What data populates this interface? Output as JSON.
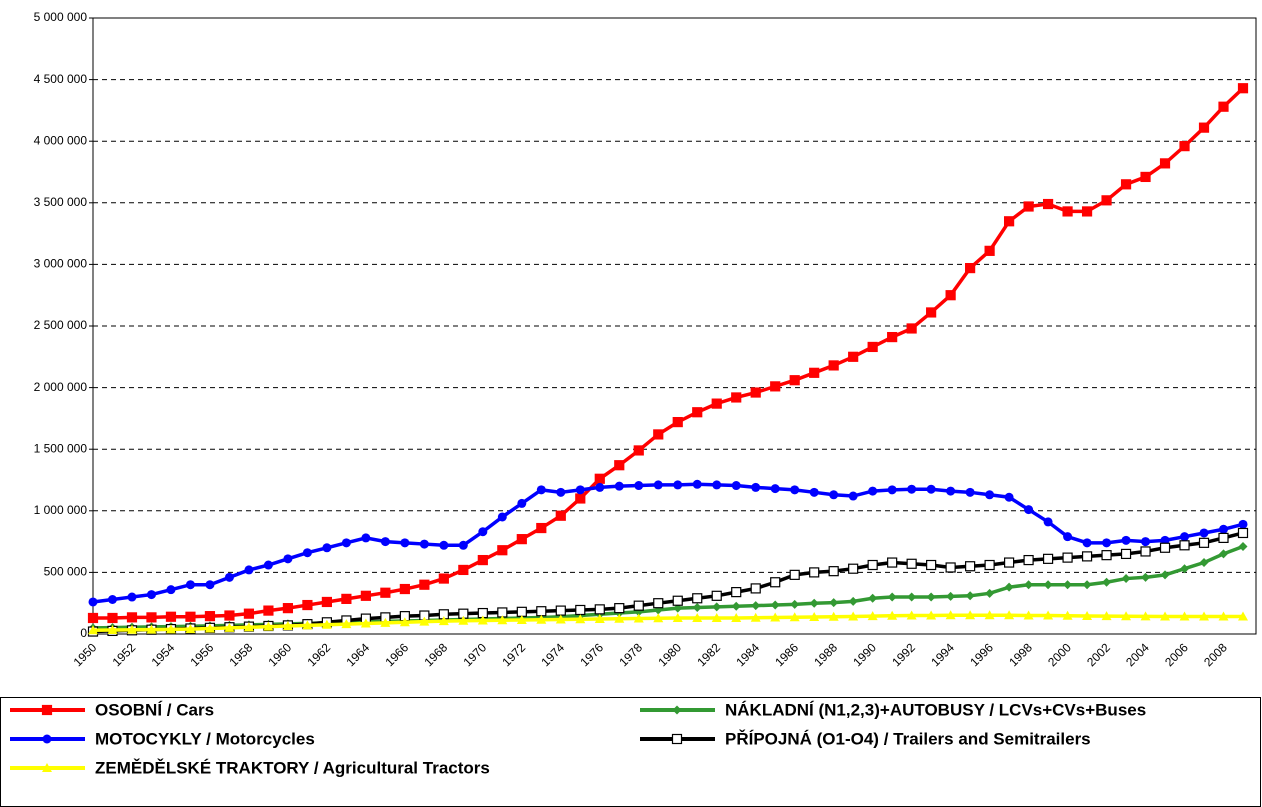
{
  "chart_data": {
    "type": "line",
    "categories": [
      "1950",
      null,
      "1952",
      null,
      "1954",
      null,
      "1956",
      null,
      "1958",
      null,
      "1960",
      null,
      "1962",
      null,
      "1964",
      null,
      "1966",
      null,
      "1968",
      null,
      "1970",
      null,
      "1972",
      null,
      "1974",
      null,
      "1976",
      null,
      "1978",
      null,
      "1980",
      null,
      "1982",
      null,
      "1984",
      null,
      "1986",
      null,
      "1988",
      null,
      "1990",
      null,
      "1992",
      null,
      "1994",
      null,
      "1996",
      null,
      "1998",
      null,
      "2000",
      null,
      "2002",
      null,
      "2004",
      null,
      "2006",
      null,
      "2008",
      null
    ],
    "series": [
      {
        "name": "OSOBNÍ / Cars",
        "color": "#ff0000",
        "marker": "square",
        "values": [
          130000,
          130000,
          135000,
          135000,
          140000,
          140000,
          145000,
          150000,
          165000,
          190000,
          210000,
          235000,
          260000,
          285000,
          310000,
          335000,
          365000,
          400000,
          450000,
          520000,
          600000,
          680000,
          770000,
          860000,
          960000,
          1100000,
          1260000,
          1370000,
          1490000,
          1620000,
          1720000,
          1800000,
          1870000,
          1920000,
          1960000,
          2010000,
          2060000,
          2120000,
          2180000,
          2250000,
          2330000,
          2410000,
          2480000,
          2610000,
          2750000,
          2970000,
          3110000,
          3350000,
          3470000,
          3490000,
          3430000,
          3430000,
          3520000,
          3650000,
          3710000,
          3820000,
          3960000,
          4110000,
          4280000,
          4430000
        ]
      },
      {
        "name": "MOTOCYKLY / Motorcycles",
        "color": "#0000ff",
        "marker": "circle",
        "values": [
          260000,
          280000,
          300000,
          320000,
          360000,
          400000,
          400000,
          460000,
          520000,
          560000,
          610000,
          660000,
          700000,
          740000,
          780000,
          750000,
          740000,
          730000,
          720000,
          720000,
          830000,
          950000,
          1060000,
          1170000,
          1150000,
          1170000,
          1190000,
          1200000,
          1205000,
          1210000,
          1210000,
          1215000,
          1210000,
          1205000,
          1190000,
          1180000,
          1170000,
          1150000,
          1130000,
          1120000,
          1160000,
          1170000,
          1175000,
          1175000,
          1160000,
          1150000,
          1130000,
          1110000,
          1010000,
          910000,
          790000,
          740000,
          740000,
          760000,
          750000,
          760000,
          790000,
          820000,
          850000,
          890000
        ]
      },
      {
        "name": "NÁKLADNÍ (N1,2,3)+AUTOBUSY / LCVs+CVs+Buses",
        "color": "#339933",
        "marker": "diamond",
        "values": [
          50000,
          52000,
          55000,
          58000,
          60000,
          63000,
          66000,
          70000,
          74000,
          78000,
          82000,
          86000,
          90000,
          94000,
          98000,
          102000,
          106000,
          110000,
          114000,
          118000,
          122000,
          126000,
          130000,
          134000,
          140000,
          150000,
          160000,
          170000,
          180000,
          195000,
          210000,
          215000,
          220000,
          225000,
          230000,
          235000,
          240000,
          250000,
          255000,
          265000,
          290000,
          300000,
          300000,
          300000,
          305000,
          310000,
          330000,
          380000,
          400000,
          400000,
          400000,
          400000,
          420000,
          450000,
          460000,
          480000,
          530000,
          580000,
          650000,
          710000
        ]
      },
      {
        "name": "PŘÍPOJNÁ (O1-O4) / Trailers and Semitrailers",
        "color": "#000000",
        "marker": "open-square",
        "values": [
          20000,
          25000,
          30000,
          35000,
          40000,
          45000,
          50000,
          55000,
          60000,
          65000,
          70000,
          80000,
          95000,
          110000,
          125000,
          135000,
          145000,
          150000,
          160000,
          165000,
          170000,
          175000,
          180000,
          185000,
          190000,
          195000,
          200000,
          210000,
          230000,
          250000,
          270000,
          290000,
          310000,
          340000,
          370000,
          420000,
          480000,
          500000,
          510000,
          530000,
          560000,
          580000,
          570000,
          560000,
          540000,
          550000,
          560000,
          580000,
          600000,
          610000,
          620000,
          630000,
          640000,
          650000,
          670000,
          700000,
          720000,
          740000,
          780000,
          820000
        ]
      },
      {
        "name": "ZEMĚDĚLSKÉ TRAKTORY / Agricultural Tractors",
        "color": "#ffff00",
        "marker": "triangle",
        "values": [
          30000,
          32000,
          34000,
          36000,
          38000,
          40000,
          45000,
          50000,
          55000,
          60000,
          65000,
          70000,
          75000,
          80000,
          85000,
          90000,
          95000,
          100000,
          105000,
          108000,
          110000,
          112000,
          114000,
          116000,
          118000,
          120000,
          122000,
          124000,
          126000,
          128000,
          130000,
          130000,
          130000,
          130000,
          132000,
          134000,
          136000,
          138000,
          140000,
          142000,
          145000,
          148000,
          150000,
          150000,
          152000,
          152000,
          152000,
          152000,
          150000,
          150000,
          148000,
          146000,
          145000,
          144000,
          143000,
          142000,
          142000,
          142000,
          142000,
          142000
        ]
      }
    ],
    "ylim": [
      0,
      5000000
    ],
    "yticks": [
      0,
      {
        "value": 500000,
        "label": "500 000"
      },
      {
        "value": 1000000,
        "label": "1 000 000"
      },
      {
        "value": 1500000,
        "label": "1 500 000"
      },
      {
        "value": 2000000,
        "label": "2 000 000"
      },
      {
        "value": 2500000,
        "label": "2 500 000"
      },
      {
        "value": 3000000,
        "label": "3 000 000"
      },
      {
        "value": 3500000,
        "label": "3 500 000"
      },
      {
        "value": 4000000,
        "label": "4 000 000"
      },
      {
        "value": 4500000,
        "label": "4 500 000"
      },
      {
        "value": 5000000,
        "label": "5 000 000"
      }
    ],
    "grid": true,
    "legend": "bottom"
  }
}
